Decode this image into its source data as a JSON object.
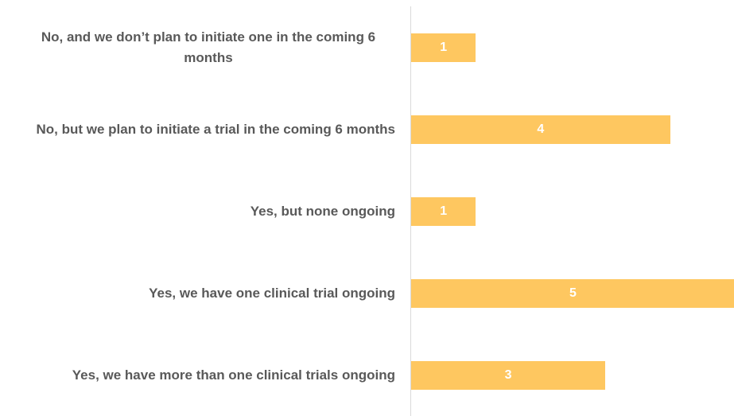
{
  "chart_data": {
    "type": "bar",
    "orientation": "horizontal",
    "categories": [
      "No, and we don’t plan to initiate one in the coming 6 months",
      "No, but we plan to initiate a trial in the coming 6 months",
      "Yes, but none ongoing",
      "Yes, we have one clinical trial ongoing",
      "Yes, we have more than one clinical trials ongoing"
    ],
    "values": [
      1,
      4,
      1,
      5,
      3
    ],
    "color": "#fec760",
    "xlim": [
      0,
      5
    ]
  }
}
